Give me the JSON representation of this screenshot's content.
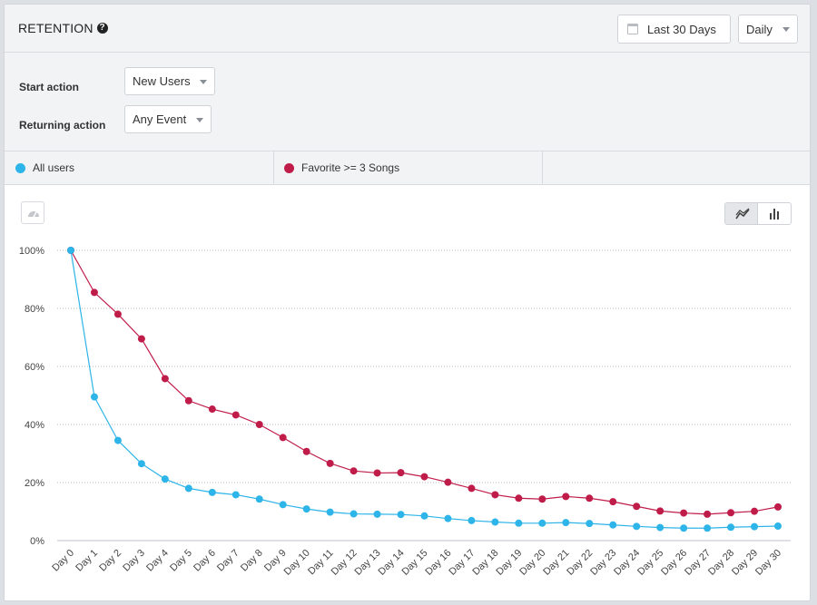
{
  "header": {
    "title": "RETENTION",
    "help_icon": "question-circle-icon",
    "date_range": "Last 30 Days",
    "interval": "Daily"
  },
  "filters": {
    "start_label": "Start action",
    "start_value": "New Users",
    "return_label": "Returning action",
    "return_value": "Any Event"
  },
  "legend": [
    {
      "label": "All users",
      "color": "#2db4e8"
    },
    {
      "label": "Favorite >= 3 Songs",
      "color": "#c01c4a"
    }
  ],
  "toolbar": {
    "gauge_icon": "gauge-icon",
    "line_icon": "line-chart-icon",
    "bar_icon": "bar-chart-icon"
  },
  "chart_data": {
    "type": "line",
    "ylim": [
      0,
      100
    ],
    "y_ticks": [
      "0%",
      "20%",
      "40%",
      "60%",
      "80%",
      "100%"
    ],
    "categories": [
      "Day 0",
      "Day 1",
      "Day 2",
      "Day 3",
      "Day 4",
      "Day 5",
      "Day 6",
      "Day 7",
      "Day 8",
      "Day 9",
      "Day 10",
      "Day 11",
      "Day 12",
      "Day 13",
      "Day 14",
      "Day 15",
      "Day 16",
      "Day 17",
      "Day 18",
      "Day 19",
      "Day 20",
      "Day 21",
      "Day 22",
      "Day 23",
      "Day 24",
      "Day 25",
      "Day 26",
      "Day 27",
      "Day 28",
      "Day 29",
      "Day 30"
    ],
    "grid": true,
    "series": [
      {
        "name": "All users",
        "color": "#2db4e8",
        "values": [
          100,
          49.5,
          34.5,
          26.5,
          21.2,
          18,
          16.6,
          15.8,
          14.3,
          12.4,
          10.9,
          9.8,
          9.2,
          9.1,
          9.0,
          8.5,
          7.6,
          6.9,
          6.4,
          6.0,
          6.0,
          6.2,
          5.9,
          5.4,
          4.9,
          4.5,
          4.3,
          4.3,
          4.6,
          4.8,
          5.0
        ]
      },
      {
        "name": "Favorite >= 3 Songs",
        "color": "#c01c4a",
        "values": [
          100,
          85.5,
          78,
          69.5,
          55.8,
          48.2,
          45.3,
          43.3,
          40,
          35.5,
          30.7,
          26.6,
          24.0,
          23.3,
          23.4,
          22.0,
          20.1,
          18.0,
          15.8,
          14.6,
          14.3,
          15.2,
          14.6,
          13.4,
          11.8,
          10.2,
          9.5,
          9.1,
          9.6,
          10.1,
          11.6
        ]
      }
    ]
  }
}
